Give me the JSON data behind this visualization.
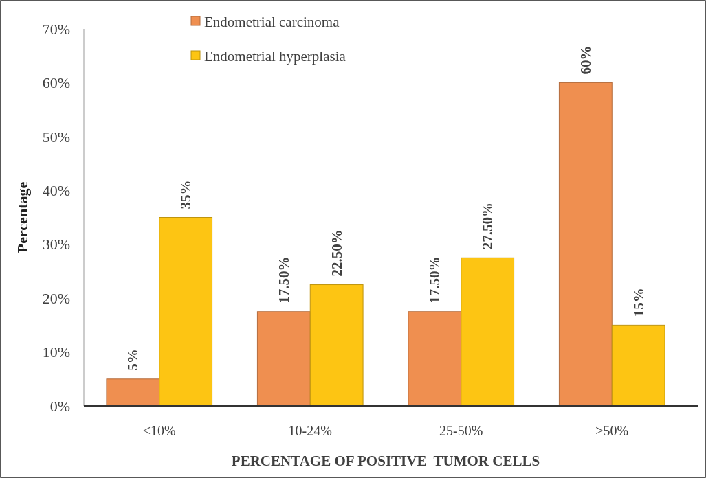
{
  "chart_data": {
    "type": "bar",
    "xlabel": "PERCENTAGE OF POSITIVE  TUMOR CELLS",
    "ylabel": "Percentage",
    "categories": [
      "<10%",
      "10-24%",
      "25-50%",
      ">50%"
    ],
    "series": [
      {
        "name": "Endometrial carcinoma",
        "color": "#ef8f50",
        "values": [
          5,
          17.5,
          17.5,
          60
        ],
        "value_labels": [
          "5%",
          "17.50%",
          "17.50%",
          "60%"
        ]
      },
      {
        "name": "Endometrial hyperplasia",
        "color": "#fdc513",
        "values": [
          35,
          22.5,
          27.5,
          15
        ],
        "value_labels": [
          "35%",
          "22.50%",
          "27.50%",
          "15%"
        ]
      }
    ],
    "ylim": [
      0,
      70
    ],
    "yticks": [
      {
        "value": 0,
        "label": "0%"
      },
      {
        "value": 10,
        "label": "10%"
      },
      {
        "value": 20,
        "label": "20%"
      },
      {
        "value": 30,
        "label": "30%"
      },
      {
        "value": 40,
        "label": "40%"
      },
      {
        "value": 50,
        "label": "50%"
      },
      {
        "value": 60,
        "label": "60%"
      },
      {
        "value": 70,
        "label": "70%"
      }
    ],
    "grid": false,
    "legend": "top"
  }
}
